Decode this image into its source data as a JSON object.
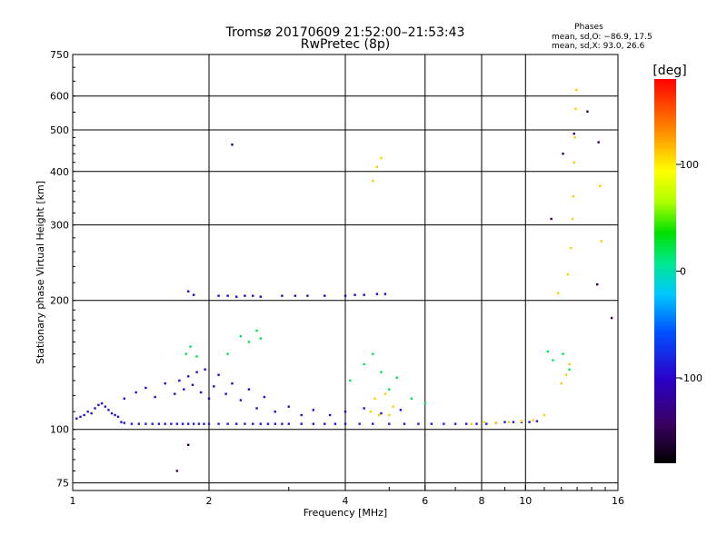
{
  "chart_data": {
    "type": "scatter",
    "title": "Tromsø 20170609 21:52:00–21:53:43",
    "subtitle": "RwPretec (8p)",
    "xlabel": "Frequency [MHz]",
    "ylabel": "Stationary phase Virtual Height [km]",
    "x_scale": "log",
    "y_scale": "log",
    "xlim": [
      1,
      16
    ],
    "ylim": [
      72,
      750
    ],
    "x_ticks": [
      1,
      2,
      4,
      6,
      8,
      10,
      16
    ],
    "x_tick_labels": [
      "1",
      "2",
      "4",
      "6",
      "8",
      "10",
      "16"
    ],
    "y_ticks": [
      75,
      100,
      200,
      300,
      400,
      500,
      600,
      750
    ],
    "y_tick_labels": [
      "75",
      "100",
      "200",
      "300",
      "400",
      "500",
      "600",
      "750"
    ],
    "grid": true,
    "phase_stats": {
      "title": "Phases",
      "line_o": "mean, sd,O: −86.9, 17.5",
      "line_x": "mean, sd,X:  93.0, 26.6"
    },
    "colorbar": {
      "label": "[deg]",
      "range": [
        -180,
        180
      ],
      "ticks": [
        100,
        0,
        -100
      ],
      "tick_labels": [
        "100",
        "0",
        "-100"
      ],
      "colormap": "rainbow: black → violet → blue → cyan → green → yellow → orange → red"
    },
    "series": [
      {
        "role": "O-mode trace (bottom-side E/F echoes)",
        "phase_deg": -90,
        "points": [
          [
            1.02,
            106
          ],
          [
            1.04,
            107
          ],
          [
            1.06,
            108
          ],
          [
            1.08,
            110
          ],
          [
            1.1,
            109
          ],
          [
            1.12,
            112
          ],
          [
            1.14,
            114
          ],
          [
            1.16,
            115
          ],
          [
            1.18,
            113
          ],
          [
            1.2,
            111
          ],
          [
            1.22,
            109
          ],
          [
            1.24,
            108
          ],
          [
            1.26,
            107
          ],
          [
            1.28,
            104
          ],
          [
            1.3,
            103.5
          ],
          [
            1.35,
            103
          ],
          [
            1.4,
            103
          ],
          [
            1.45,
            103
          ],
          [
            1.5,
            103
          ],
          [
            1.55,
            103
          ],
          [
            1.6,
            103
          ],
          [
            1.65,
            103
          ],
          [
            1.7,
            103
          ],
          [
            1.75,
            103
          ],
          [
            1.8,
            103
          ],
          [
            1.85,
            103
          ],
          [
            1.9,
            103
          ],
          [
            1.95,
            103
          ],
          [
            2.0,
            103
          ],
          [
            2.1,
            103
          ],
          [
            2.2,
            103
          ],
          [
            2.3,
            103
          ],
          [
            2.4,
            103
          ],
          [
            2.5,
            103
          ],
          [
            2.6,
            103
          ],
          [
            2.7,
            103
          ],
          [
            2.8,
            103
          ],
          [
            2.9,
            103
          ],
          [
            3.0,
            103
          ],
          [
            3.2,
            103
          ],
          [
            3.4,
            103
          ],
          [
            3.6,
            103
          ],
          [
            3.8,
            103
          ],
          [
            4.0,
            103
          ],
          [
            4.3,
            103
          ],
          [
            4.6,
            103
          ],
          [
            5.0,
            103
          ],
          [
            5.4,
            103
          ],
          [
            5.8,
            103
          ],
          [
            6.2,
            103
          ],
          [
            6.6,
            103
          ],
          [
            7.0,
            103
          ],
          [
            7.4,
            103
          ],
          [
            7.8,
            103
          ],
          [
            8.2,
            103
          ],
          [
            8.6,
            103.5
          ],
          [
            9.0,
            104
          ],
          [
            9.4,
            104
          ],
          [
            9.8,
            104
          ],
          [
            10.2,
            104
          ],
          [
            10.6,
            104.5
          ]
        ]
      },
      {
        "role": "O-mode scattered echoes (110–140 km)",
        "phase_deg": -95,
        "points": [
          [
            1.3,
            118
          ],
          [
            1.38,
            122
          ],
          [
            1.45,
            125
          ],
          [
            1.52,
            119
          ],
          [
            1.6,
            128
          ],
          [
            1.68,
            121
          ],
          [
            1.72,
            130
          ],
          [
            1.76,
            124
          ],
          [
            1.8,
            133
          ],
          [
            1.84,
            127
          ],
          [
            1.88,
            136
          ],
          [
            1.92,
            122
          ],
          [
            1.96,
            138
          ],
          [
            2.0,
            118
          ],
          [
            2.05,
            126
          ],
          [
            2.1,
            134
          ],
          [
            2.18,
            121
          ],
          [
            2.25,
            128
          ],
          [
            2.35,
            117
          ],
          [
            2.45,
            124
          ],
          [
            2.55,
            112
          ],
          [
            2.65,
            119
          ],
          [
            2.8,
            110
          ],
          [
            3.0,
            113
          ],
          [
            3.2,
            108
          ],
          [
            3.4,
            111
          ],
          [
            3.7,
            108
          ],
          [
            4.0,
            110
          ],
          [
            4.4,
            112
          ],
          [
            4.8,
            109
          ],
          [
            5.3,
            111
          ]
        ]
      },
      {
        "role": "F-region echoes near 205 km",
        "phase_deg": -100,
        "points": [
          [
            1.8,
            210
          ],
          [
            1.85,
            206
          ],
          [
            2.1,
            205
          ],
          [
            2.2,
            205
          ],
          [
            2.3,
            204
          ],
          [
            2.4,
            205
          ],
          [
            2.5,
            205
          ],
          [
            2.6,
            204
          ],
          [
            2.9,
            205
          ],
          [
            3.1,
            205
          ],
          [
            3.3,
            205
          ],
          [
            3.6,
            205
          ],
          [
            4.0,
            205
          ],
          [
            4.2,
            206
          ],
          [
            4.4,
            206
          ],
          [
            4.7,
            207
          ],
          [
            4.9,
            207
          ]
        ]
      },
      {
        "role": "mixed-phase echoes",
        "phase_deg": 20,
        "points": [
          [
            1.78,
            150
          ],
          [
            1.82,
            156
          ],
          [
            1.88,
            148
          ],
          [
            2.2,
            150
          ],
          [
            2.35,
            165
          ],
          [
            2.45,
            160
          ],
          [
            2.55,
            170
          ],
          [
            2.6,
            163
          ],
          [
            4.1,
            130
          ],
          [
            4.4,
            142
          ],
          [
            4.6,
            150
          ],
          [
            4.8,
            136
          ],
          [
            5.0,
            124
          ],
          [
            5.2,
            132
          ],
          [
            5.6,
            118
          ],
          [
            6.0,
            115
          ],
          [
            11.2,
            152
          ],
          [
            11.5,
            145
          ],
          [
            12.1,
            150
          ],
          [
            12.5,
            138
          ]
        ]
      },
      {
        "role": "X-mode echoes (high phase)",
        "phase_deg": 110,
        "points": [
          [
            4.55,
            110
          ],
          [
            4.65,
            118
          ],
          [
            4.75,
            108
          ],
          [
            4.9,
            121
          ],
          [
            5.0,
            108
          ],
          [
            5.1,
            113
          ],
          [
            7.6,
            103
          ],
          [
            8.1,
            104
          ],
          [
            8.6,
            103.5
          ],
          [
            9.2,
            104
          ],
          [
            9.8,
            104.5
          ],
          [
            10.4,
            105
          ],
          [
            11.0,
            108
          ],
          [
            12.0,
            128
          ],
          [
            12.3,
            134
          ],
          [
            12.5,
            142
          ],
          [
            11.8,
            208
          ],
          [
            12.4,
            230
          ],
          [
            12.6,
            265
          ],
          [
            12.7,
            310
          ],
          [
            12.75,
            350
          ],
          [
            12.8,
            420
          ],
          [
            12.85,
            480
          ],
          [
            12.9,
            560
          ],
          [
            12.95,
            620
          ],
          [
            4.6,
            380
          ],
          [
            4.7,
            410
          ],
          [
            4.8,
            430
          ],
          [
            14.6,
            370
          ],
          [
            14.7,
            275
          ]
        ]
      },
      {
        "role": "isolated outliers",
        "phase_deg": -150,
        "points": [
          [
            2.25,
            462
          ],
          [
            12.8,
            490
          ],
          [
            14.5,
            468
          ],
          [
            13.7,
            552
          ],
          [
            12.1,
            440
          ],
          [
            1.7,
            80
          ],
          [
            1.8,
            92
          ],
          [
            15.5,
            182
          ],
          [
            14.4,
            218
          ],
          [
            11.4,
            310
          ]
        ]
      }
    ]
  }
}
